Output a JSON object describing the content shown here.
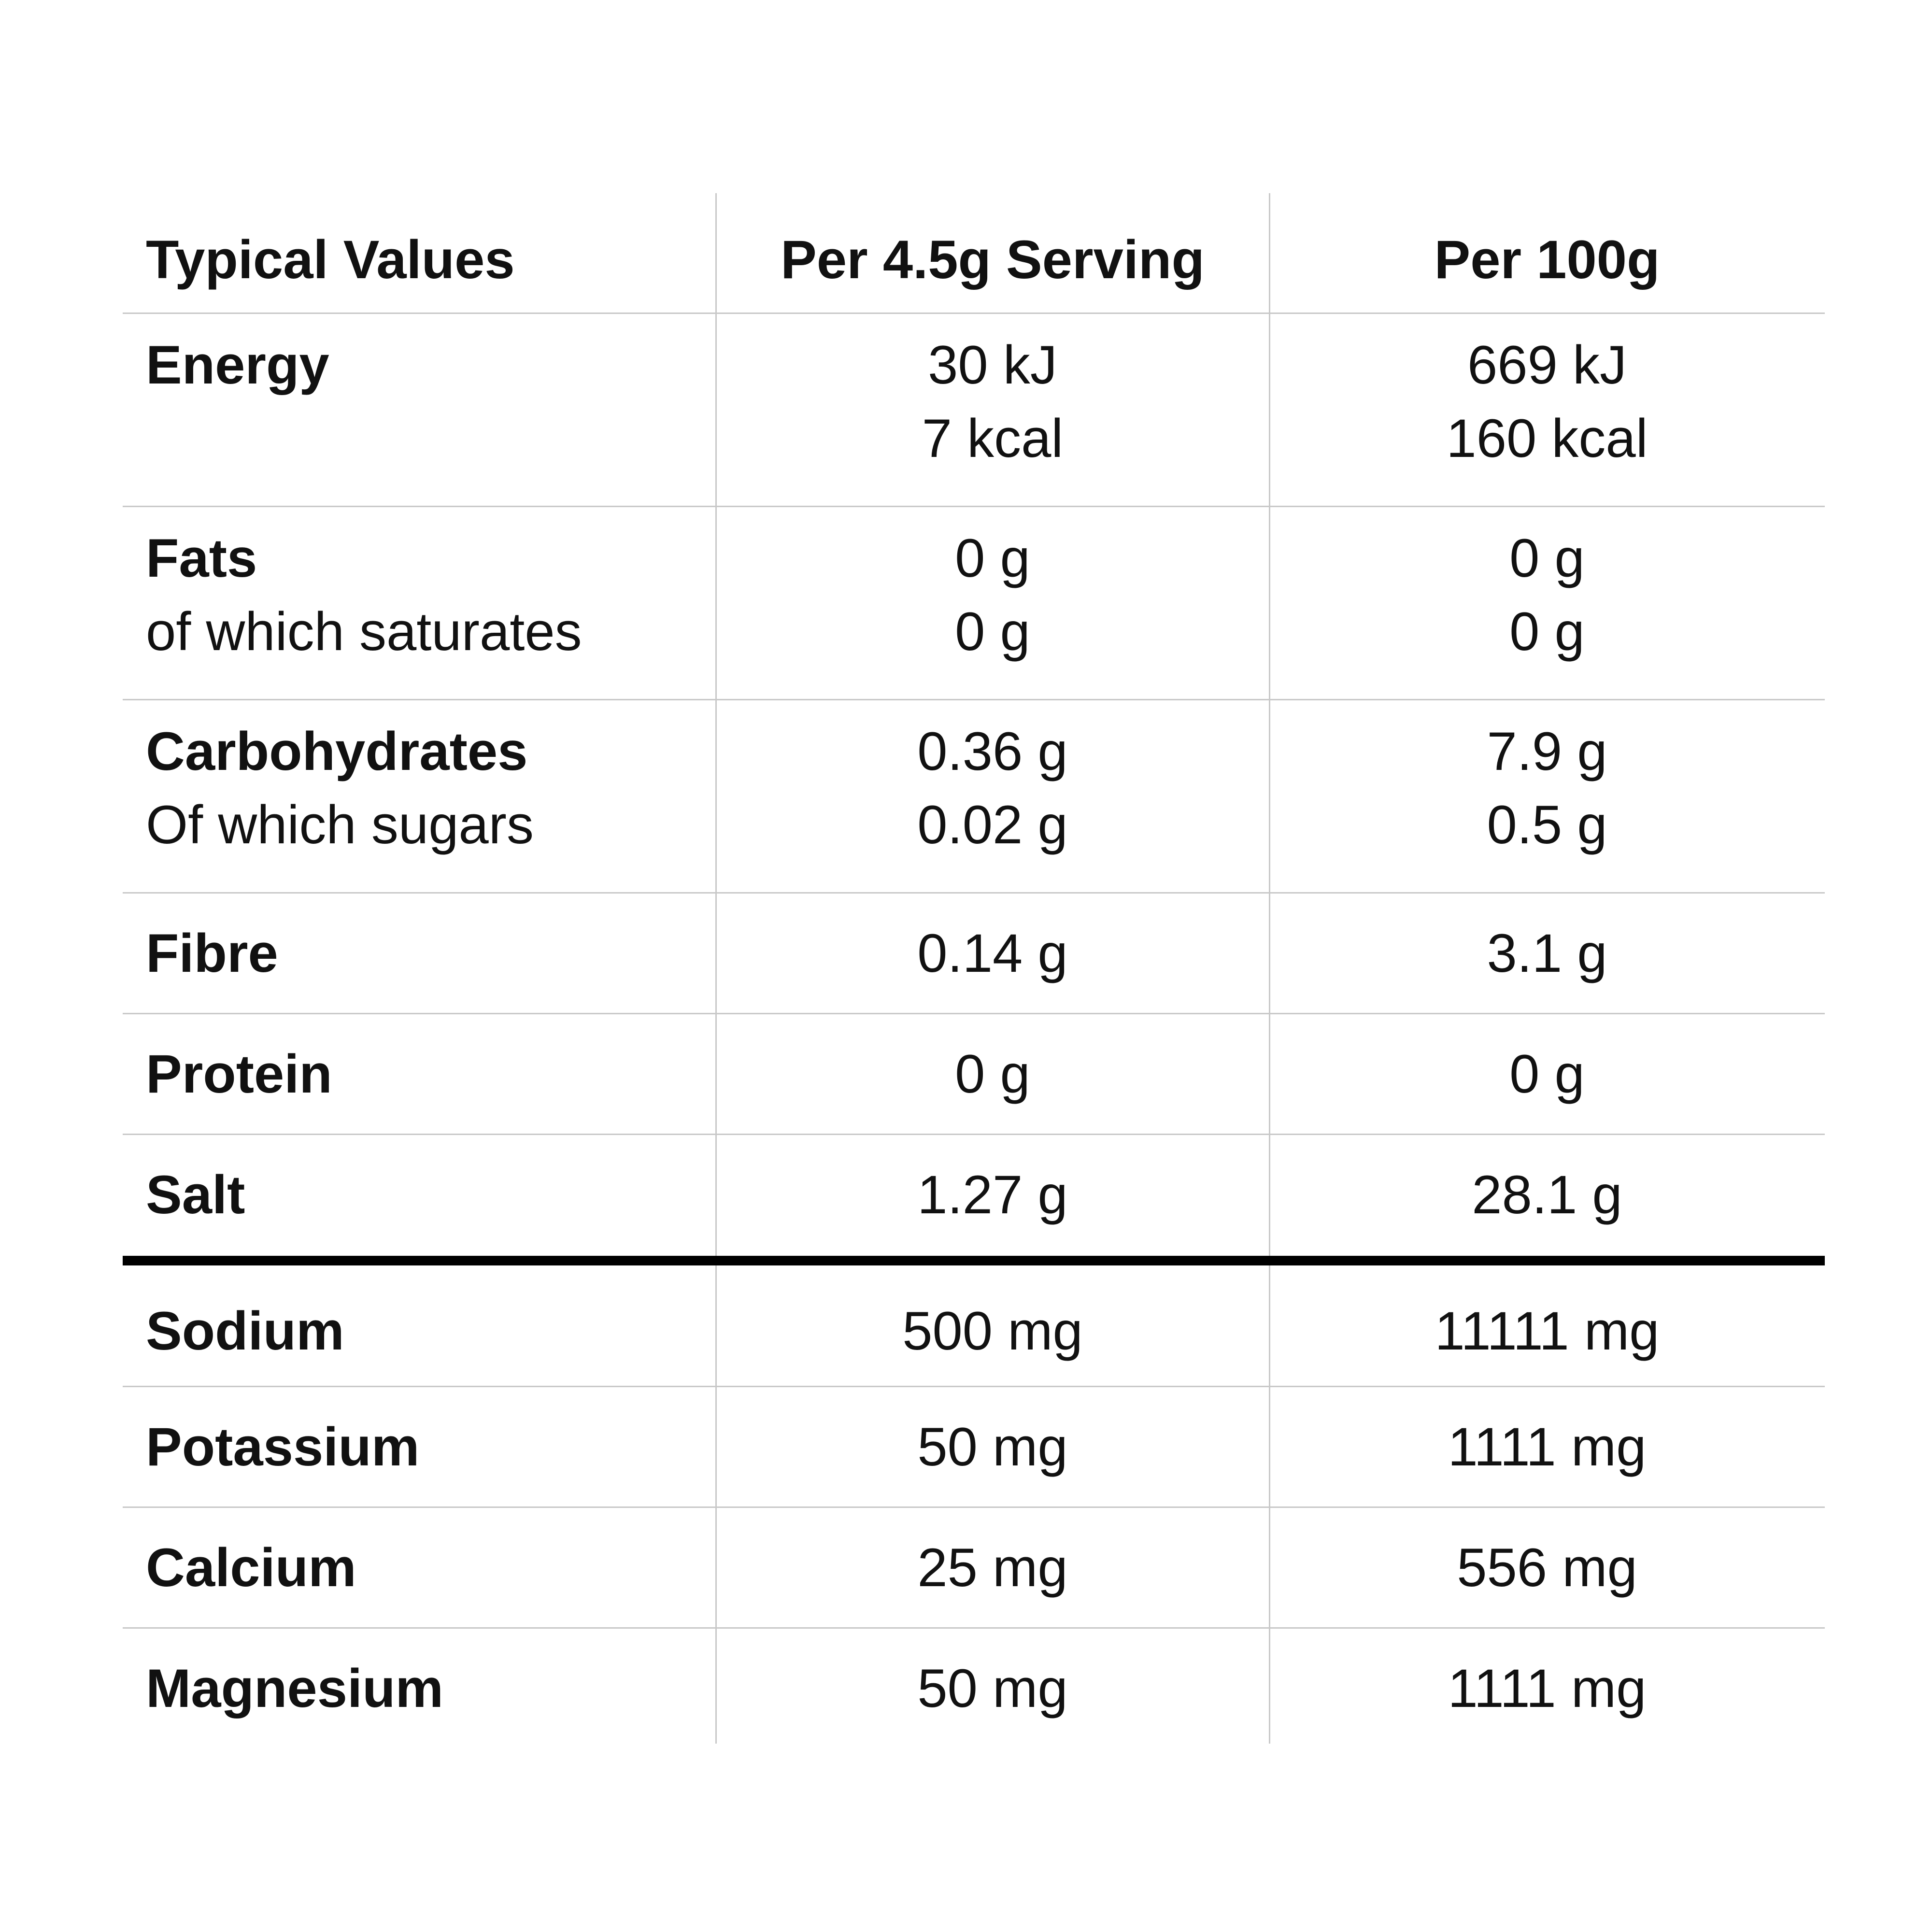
{
  "header": {
    "col1": "Typical Values",
    "col2": "Per 4.5g Serving",
    "col3": "Per 100g"
  },
  "rows": [
    {
      "label": "Energy",
      "sublabel": "",
      "serving": "30 kJ",
      "serving2": "7 kcal",
      "per100": "669 kJ",
      "per100_2": "160 kcal"
    },
    {
      "label": "Fats",
      "sublabel": "of which saturates",
      "serving": "0 g",
      "serving2": "0 g",
      "per100": "0 g",
      "per100_2": "0 g"
    },
    {
      "label": "Carbohydrates",
      "sublabel": "Of which sugars",
      "serving": "0.36 g",
      "serving2": "0.02 g",
      "per100": "7.9 g",
      "per100_2": "0.5 g"
    },
    {
      "label": "Fibre",
      "serving": "0.14 g",
      "per100": "3.1 g"
    },
    {
      "label": "Protein",
      "serving": "0 g",
      "per100": "0 g"
    },
    {
      "label": "Salt",
      "serving": "1.27 g",
      "per100": "28.1 g"
    },
    {
      "label": "Sodium",
      "serving": "500 mg",
      "per100": "11111 mg"
    },
    {
      "label": "Potassium",
      "serving": "50 mg",
      "per100": "1111 mg"
    },
    {
      "label": "Calcium",
      "serving": "25 mg",
      "per100": "556 mg"
    },
    {
      "label": "Magnesium",
      "serving": "50 mg",
      "per100": "1111 mg"
    }
  ]
}
